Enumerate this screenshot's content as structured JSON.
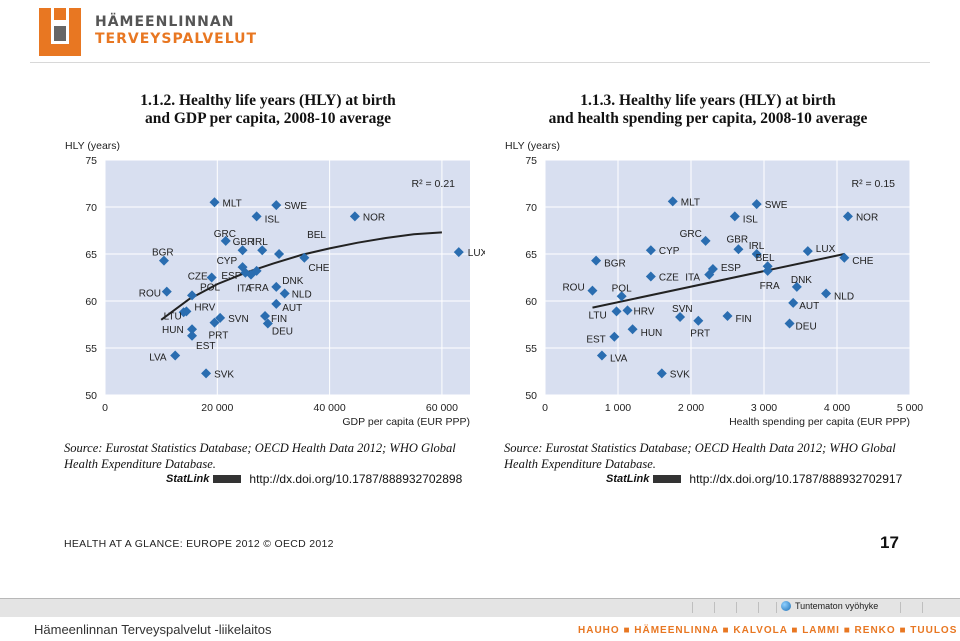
{
  "header": {
    "org_line1": "HÄMEENLINNAN",
    "org_line2": "TERVEYSPALVELUT"
  },
  "figures": [
    {
      "number": "1.1.2.",
      "title_line1": "1.1.2. Healthy life years (HLY) at birth",
      "title_line2": "and GDP per capita, 2008-10 average",
      "source_line1": "Source: Eurostat Statistics Database; OECD Health Data 2012; WHO Global",
      "source_line2": "Health Expenditure Database.",
      "statlink_url": "http://dx.doi.org/10.1787/888932702898"
    },
    {
      "number": "1.1.3.",
      "title_line1": "1.1.3. Healthy life years (HLY) at birth",
      "title_line2": "and health spending per capita, 2008-10 average",
      "source_line1": "Source: Eurostat Statistics Database; OECD Health Data 2012; WHO Global",
      "source_line2": "Health Expenditure Database.",
      "statlink_url": "http://dx.doi.org/10.1787/888932702917"
    }
  ],
  "statlink_label": "StatLink",
  "footer": {
    "left": "HEALTH AT A GLANCE: EUROPE 2012 © OECD 2012",
    "page": "17"
  },
  "status": {
    "zone": "Tuntematon vyöhyke"
  },
  "bottom": {
    "left": "Hämeenlinnan Terveyspalvelut -liikelaitos",
    "right": "HAUHO ■ HÄMEENLINNA ■ KALVOLA ■ LAMMI ■ RENKO ■ TUULOS"
  },
  "colors": {
    "marker": "#2a6db0",
    "plot_bg": "#d8dff0",
    "accent": "#e87722"
  },
  "chart_data": [
    {
      "type": "scatter",
      "ylabel": "HLY (years)",
      "xlabel": "GDP per capita (EUR PPP)",
      "xlim": [
        0,
        65000
      ],
      "ylim": [
        50,
        75
      ],
      "xticks": [
        0,
        20000,
        40000,
        60000
      ],
      "xtick_labels": [
        "0",
        "20 000",
        "40 000",
        "60 000"
      ],
      "yticks": [
        50,
        55,
        60,
        65,
        70,
        75
      ],
      "annotation": "R² = 0.21",
      "trend": [
        [
          10000,
          58.0
        ],
        [
          15000,
          60.2
        ],
        [
          20000,
          61.8
        ],
        [
          25000,
          63.0
        ],
        [
          30000,
          64.0
        ],
        [
          35000,
          64.9
        ],
        [
          40000,
          65.6
        ],
        [
          45000,
          66.2
        ],
        [
          50000,
          66.7
        ],
        [
          55000,
          67.1
        ],
        [
          60000,
          67.3
        ]
      ],
      "points": [
        {
          "label": "MLT",
          "x": 19500,
          "y": 70.5
        },
        {
          "label": "SWE",
          "x": 30500,
          "y": 70.2
        },
        {
          "label": "ISL",
          "x": 27000,
          "y": 69.0
        },
        {
          "label": "NOR",
          "x": 44500,
          "y": 69.0
        },
        {
          "label": "GRC",
          "x": 21500,
          "y": 66.4
        },
        {
          "label": "GBR",
          "x": 24500,
          "y": 65.4
        },
        {
          "label": "IRL",
          "x": 28000,
          "y": 65.4
        },
        {
          "label": "BEL",
          "x": 31000,
          "y": 65.0
        },
        {
          "label": "LUX",
          "x": 63000,
          "y": 65.2
        },
        {
          "label": "BGR",
          "x": 10500,
          "y": 64.3
        },
        {
          "label": "CYP",
          "x": 24500,
          "y": 63.6
        },
        {
          "label": "ESP",
          "x": 25000,
          "y": 63.0
        },
        {
          "label": "CHE",
          "x": 35500,
          "y": 64.6
        },
        {
          "label": "CZE",
          "x": 19000,
          "y": 62.5
        },
        {
          "label": "ITA",
          "x": 26000,
          "y": 62.8
        },
        {
          "label": "DNK",
          "x": 30500,
          "y": 61.5
        },
        {
          "label": "NLD",
          "x": 32000,
          "y": 60.8
        },
        {
          "label": "ROU",
          "x": 11000,
          "y": 61.0
        },
        {
          "label": "POL",
          "x": 15500,
          "y": 60.6
        },
        {
          "label": "FRA",
          "x": 27000,
          "y": 63.2
        },
        {
          "label": "AUT",
          "x": 30500,
          "y": 59.7
        },
        {
          "label": "HRV",
          "x": 14500,
          "y": 58.9
        },
        {
          "label": "SVN",
          "x": 20500,
          "y": 58.2
        },
        {
          "label": "FIN",
          "x": 28500,
          "y": 58.4
        },
        {
          "label": "LTU",
          "x": 14000,
          "y": 58.8
        },
        {
          "label": "PRT",
          "x": 19500,
          "y": 57.7
        },
        {
          "label": "DEU",
          "x": 29000,
          "y": 57.6
        },
        {
          "label": "HUN",
          "x": 15500,
          "y": 57.0
        },
        {
          "label": "EST",
          "x": 15500,
          "y": 56.3
        },
        {
          "label": "LVA",
          "x": 12500,
          "y": 54.2
        },
        {
          "label": "SVK",
          "x": 18000,
          "y": 52.3
        }
      ]
    },
    {
      "type": "scatter",
      "ylabel": "HLY (years)",
      "xlabel": "Health spending per capita (EUR PPP)",
      "xlim": [
        0,
        5000
      ],
      "ylim": [
        50,
        75
      ],
      "xticks": [
        0,
        1000,
        2000,
        3000,
        4000,
        5000
      ],
      "xtick_labels": [
        "0",
        "1 000",
        "2 000",
        "3 000",
        "4 000",
        "5 000"
      ],
      "yticks": [
        50,
        55,
        60,
        65,
        70,
        75
      ],
      "annotation": "R² = 0.15",
      "trend": [
        [
          650,
          59.3
        ],
        [
          4100,
          65.0
        ]
      ],
      "points": [
        {
          "label": "MLT",
          "x": 1750,
          "y": 70.6
        },
        {
          "label": "SWE",
          "x": 2900,
          "y": 70.3
        },
        {
          "label": "ISL",
          "x": 2600,
          "y": 69.0
        },
        {
          "label": "NOR",
          "x": 4150,
          "y": 69.0
        },
        {
          "label": "GRC",
          "x": 2200,
          "y": 66.4
        },
        {
          "label": "GBR",
          "x": 2650,
          "y": 65.5
        },
        {
          "label": "CYP",
          "x": 1450,
          "y": 65.4
        },
        {
          "label": "IRL",
          "x": 2900,
          "y": 65.0
        },
        {
          "label": "LUX",
          "x": 3600,
          "y": 65.3
        },
        {
          "label": "CHE",
          "x": 4100,
          "y": 64.6
        },
        {
          "label": "BGR",
          "x": 700,
          "y": 64.3
        },
        {
          "label": "BEL",
          "x": 3050,
          "y": 63.7
        },
        {
          "label": "ESP",
          "x": 2300,
          "y": 63.4
        },
        {
          "label": "ITA",
          "x": 2250,
          "y": 62.8
        },
        {
          "label": "CZE",
          "x": 1450,
          "y": 62.6
        },
        {
          "label": "FRA",
          "x": 3050,
          "y": 63.2
        },
        {
          "label": "DNK",
          "x": 3450,
          "y": 61.5
        },
        {
          "label": "NLD",
          "x": 3850,
          "y": 60.8
        },
        {
          "label": "ROU",
          "x": 650,
          "y": 61.1
        },
        {
          "label": "POL",
          "x": 1050,
          "y": 60.5
        },
        {
          "label": "AUT",
          "x": 3400,
          "y": 59.8
        },
        {
          "label": "LTU",
          "x": 980,
          "y": 58.9
        },
        {
          "label": "HRV",
          "x": 1130,
          "y": 59.0
        },
        {
          "label": "SVN",
          "x": 1850,
          "y": 58.3
        },
        {
          "label": "FIN",
          "x": 2500,
          "y": 58.4
        },
        {
          "label": "PRT",
          "x": 2100,
          "y": 57.9
        },
        {
          "label": "DEU",
          "x": 3350,
          "y": 57.6
        },
        {
          "label": "HUN",
          "x": 1200,
          "y": 57.0
        },
        {
          "label": "EST",
          "x": 950,
          "y": 56.2
        },
        {
          "label": "LVA",
          "x": 780,
          "y": 54.2
        },
        {
          "label": "SVK",
          "x": 1600,
          "y": 52.3
        }
      ]
    }
  ]
}
